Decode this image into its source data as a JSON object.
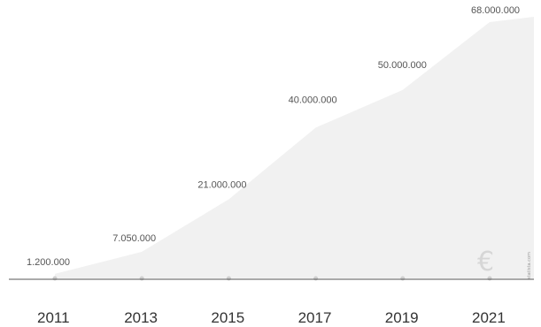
{
  "chart_data": {
    "type": "area",
    "categories": [
      "2011",
      "2013",
      "2015",
      "2017",
      "2019",
      "2021"
    ],
    "values": [
      1200000,
      7050000,
      21000000,
      40000000,
      50000000,
      68000000
    ],
    "value_labels": [
      "1.200.000",
      "7.050.000",
      "21.000.000",
      "40.000.000",
      "50.000.000",
      "68.000.000"
    ],
    "title": "",
    "xlabel": "",
    "ylabel": "",
    "ylim": [
      0,
      68000000
    ],
    "grid": false,
    "legend": "none",
    "currency_symbol": "€",
    "watermark": "statista.com",
    "colors": {
      "area": "#f1f1f1",
      "axis": "#555555",
      "marker": "#cfcfcf"
    }
  }
}
